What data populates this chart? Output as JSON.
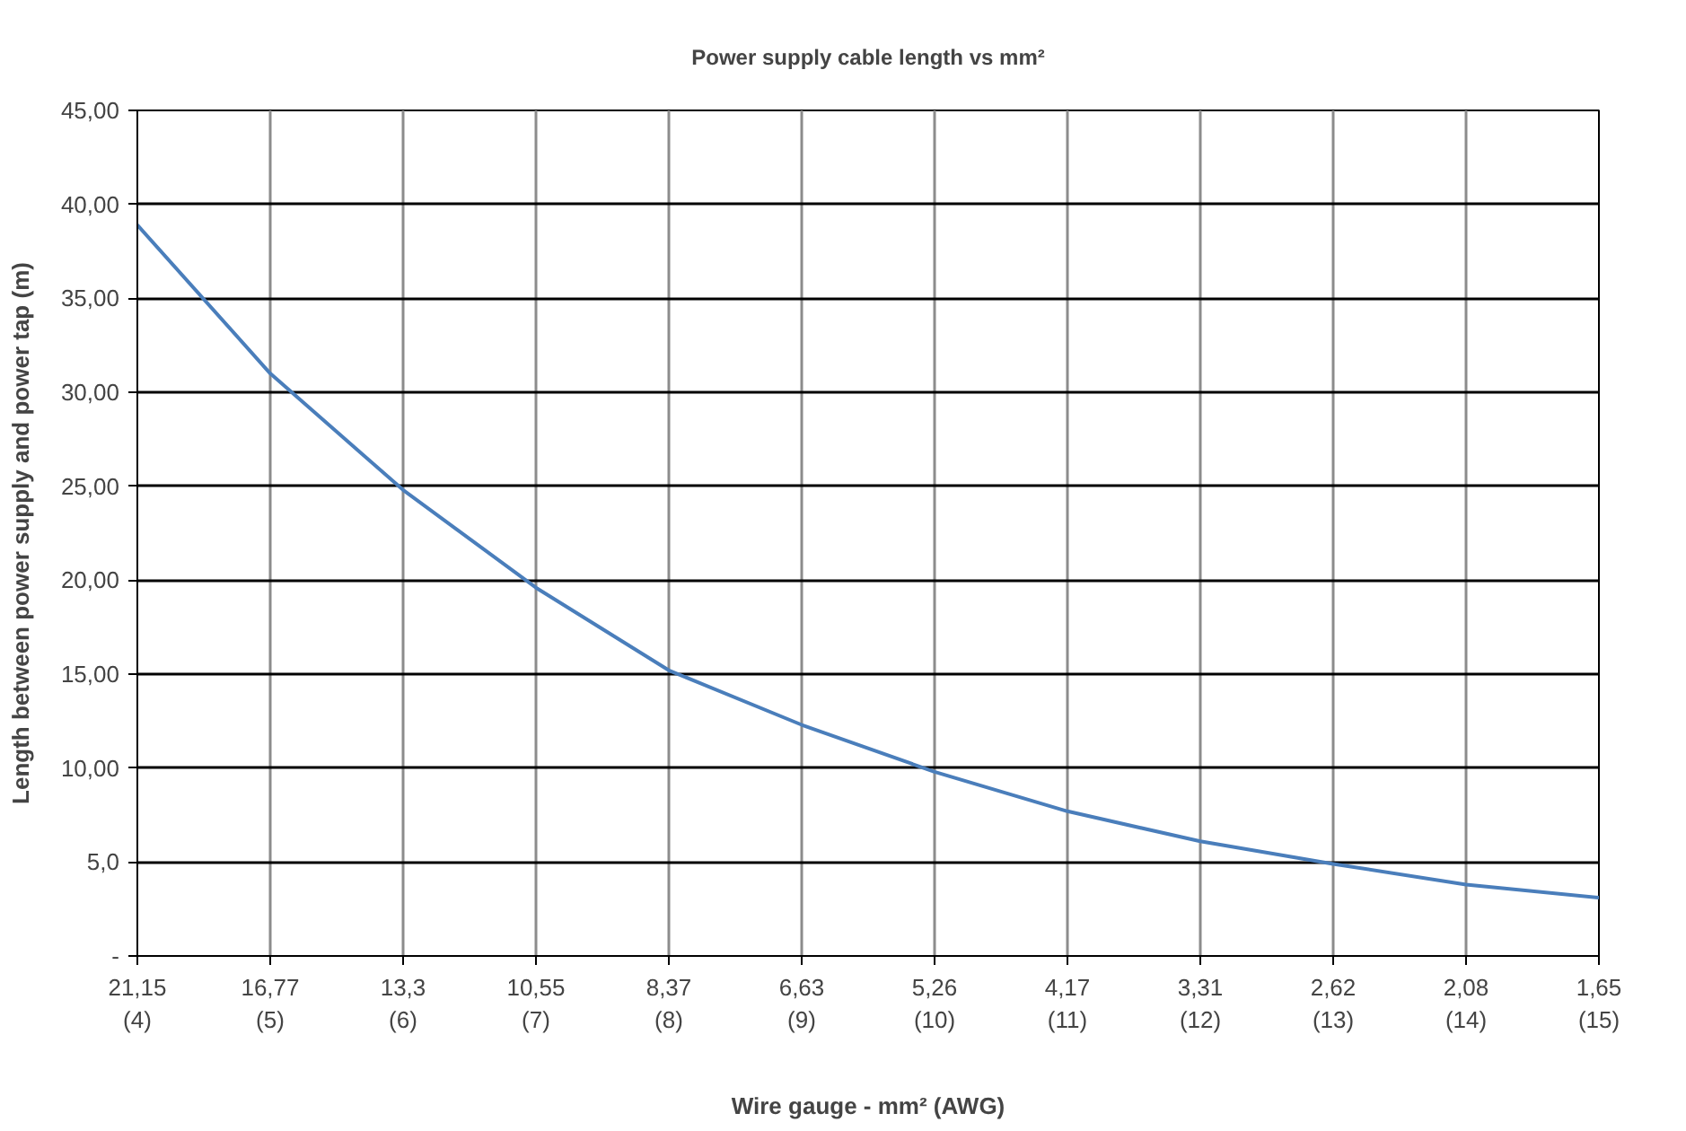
{
  "chart_data": {
    "type": "line",
    "title": "Power supply cable length vs mm²",
    "xlabel": "Wire gauge - mm² (AWG)",
    "ylabel": "Length between power supply and power tap (m)",
    "categories": [
      "21,15\n(4)",
      "16,77\n(5)",
      "13,3\n(6)",
      "10,55\n(7)",
      "8,37\n(8)",
      "6,63\n(9)",
      "5,26\n(10)",
      "4,17\n(11)",
      "3,31\n(12)",
      "2,62\n(13)",
      "2,08\n(14)",
      "1,65\n(15)"
    ],
    "series": [
      {
        "color": "#4a7ebb",
        "values": [
          38.9,
          31.0,
          24.8,
          19.6,
          15.2,
          12.3,
          9.8,
          7.7,
          6.1,
          4.9,
          3.8,
          3.1
        ]
      }
    ],
    "ylim": [
      0,
      45
    ],
    "yticks": [
      {
        "value": 0,
        "label": "-"
      },
      {
        "value": 5,
        "label": "5,0"
      },
      {
        "value": 10,
        "label": "10,00"
      },
      {
        "value": 15,
        "label": "15,00"
      },
      {
        "value": 20,
        "label": "20,00"
      },
      {
        "value": 25,
        "label": "25,00"
      },
      {
        "value": 30,
        "label": "30,00"
      },
      {
        "value": 35,
        "label": "35,00"
      },
      {
        "value": 40,
        "label": "40,00"
      },
      {
        "value": 45,
        "label": "45,00"
      }
    ],
    "grid": true,
    "marker": "none",
    "line_style": "solid"
  }
}
